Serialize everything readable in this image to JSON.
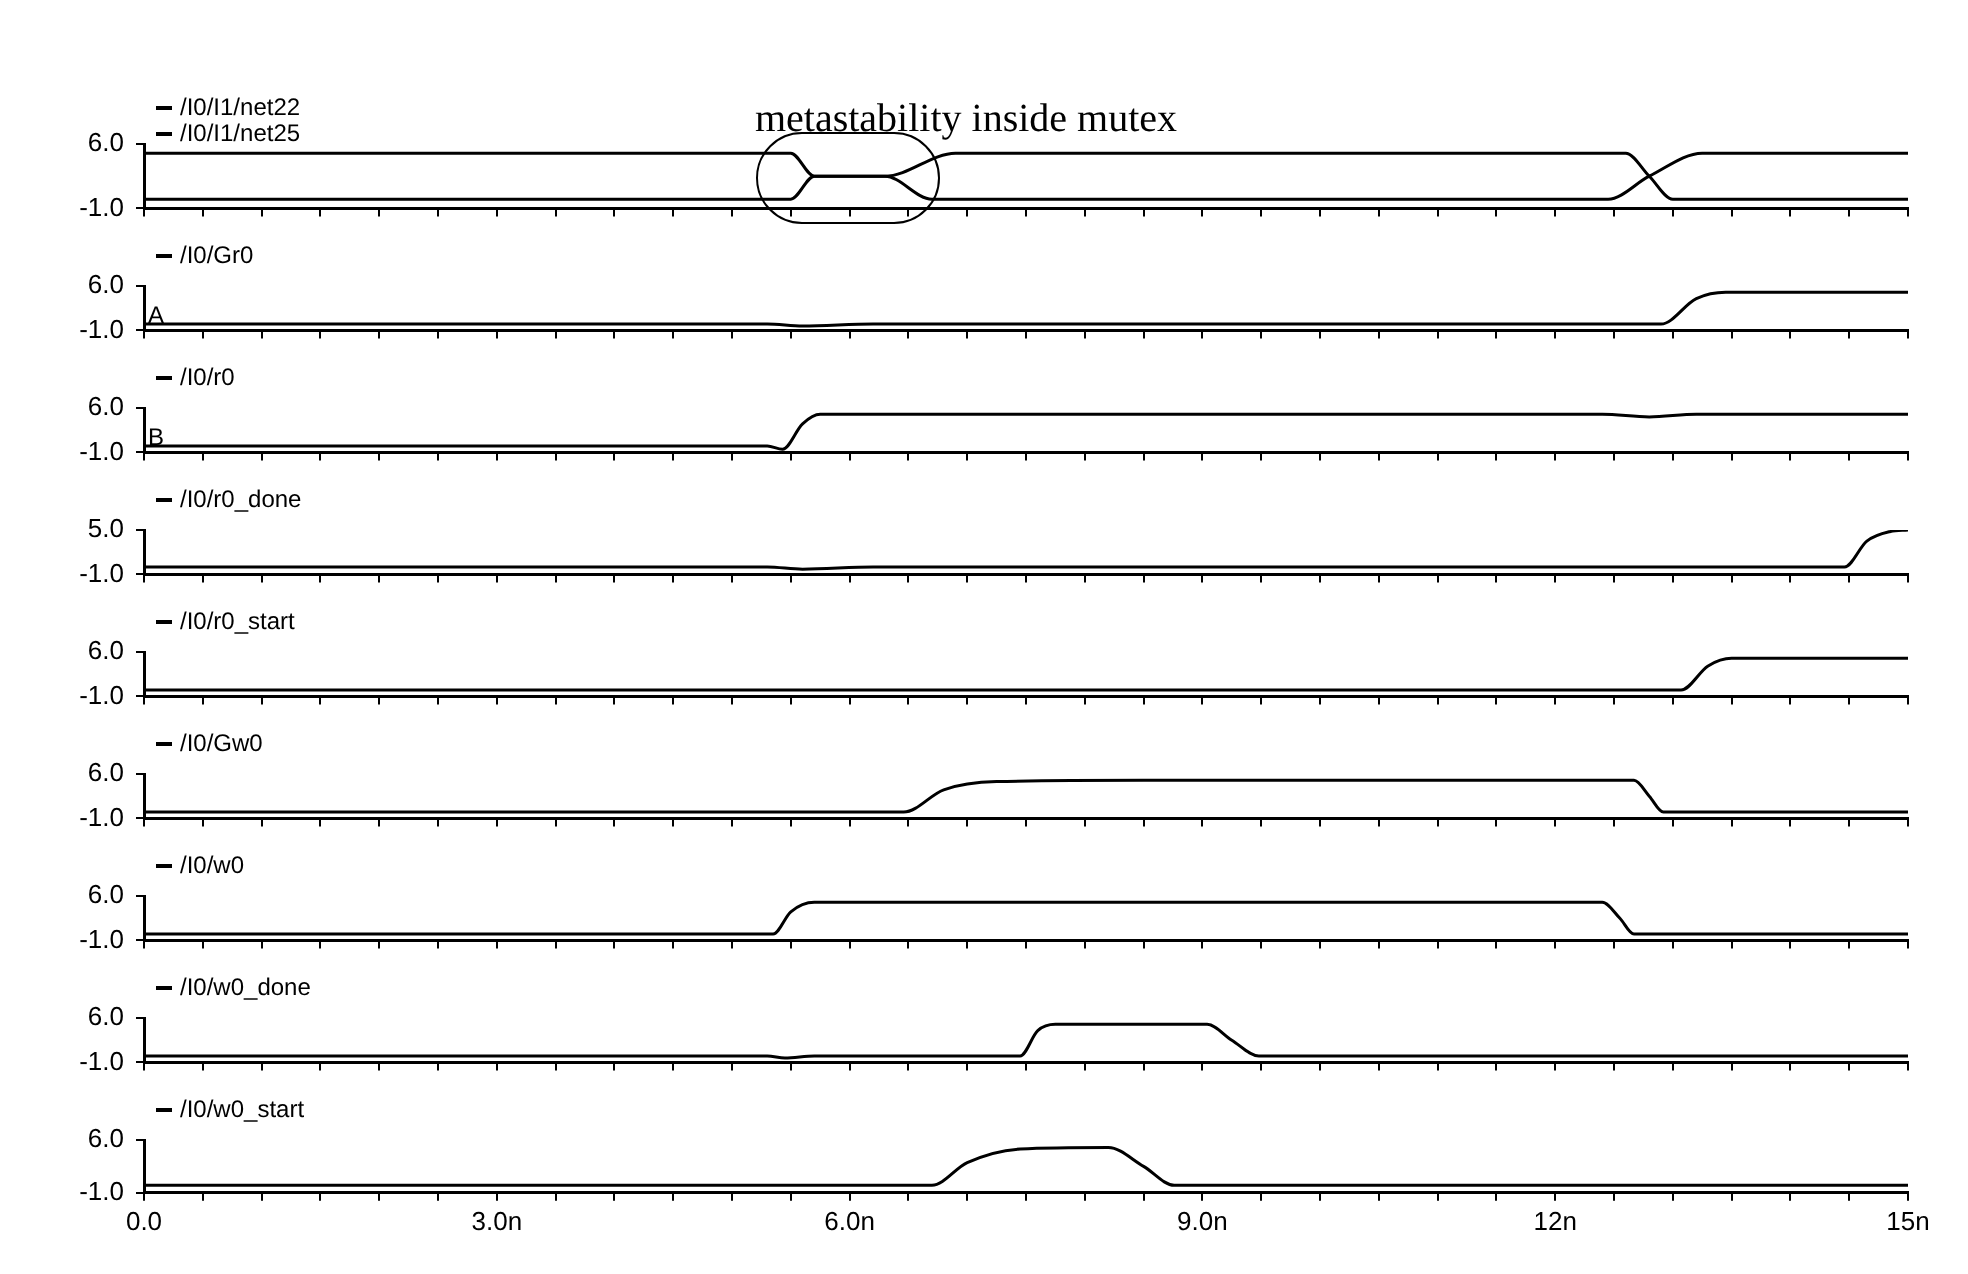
{
  "chart_data": [
    {
      "type": "line",
      "title": "metastability inside mutex",
      "legend": "top left",
      "tick_labels": "y",
      "xlim": [
        0,
        15
      ],
      "ylim": [
        -1,
        6
      ],
      "yticks": [
        {
          "value": 6,
          "label": "6.0"
        },
        {
          "value": -1,
          "label": "-1.0"
        }
      ],
      "xticks": [
        {
          "value": 0,
          "label": null
        },
        {
          "value": 0.5,
          "label": null
        },
        {
          "value": 1,
          "label": null
        },
        {
          "value": 1.5,
          "label": null
        },
        {
          "value": 2,
          "label": null
        },
        {
          "value": 2.5,
          "label": null
        },
        {
          "value": 3,
          "label": null
        },
        {
          "value": 3.5,
          "label": null
        },
        {
          "value": 4,
          "label": null
        },
        {
          "value": 4.5,
          "label": null
        },
        {
          "value": 5,
          "label": null
        },
        {
          "value": 5.5,
          "label": null
        },
        {
          "value": 6,
          "label": null
        },
        {
          "value": 6.5,
          "label": null
        },
        {
          "value": 7,
          "label": null
        },
        {
          "value": 7.5,
          "label": null
        },
        {
          "value": 8,
          "label": null
        },
        {
          "value": 8.5,
          "label": null
        },
        {
          "value": 9,
          "label": null
        },
        {
          "value": 9.5,
          "label": null
        },
        {
          "value": 10,
          "label": null
        },
        {
          "value": 10.5,
          "label": null
        },
        {
          "value": 11,
          "label": null
        },
        {
          "value": 11.5,
          "label": null
        },
        {
          "value": 12,
          "label": null
        },
        {
          "value": 12.5,
          "label": null
        },
        {
          "value": 13,
          "label": null
        },
        {
          "value": 13.5,
          "label": null
        },
        {
          "value": 14,
          "label": null
        },
        {
          "value": 14.5,
          "label": null
        },
        {
          "value": 15,
          "label": null
        }
      ],
      "series": [
        {
          "name": "/I0/I1/net22",
          "color": "#000000",
          "x": [
            0,
            5.5,
            5.7,
            6.3,
            6.7,
            12.45,
            12.8,
            13.25,
            15
          ],
          "values": [
            5,
            5,
            2.5,
            2.5,
            0,
            0,
            2.5,
            5,
            5
          ]
        },
        {
          "name": "/I0/I1/net25",
          "color": "#000000",
          "x": [
            0,
            5.5,
            5.7,
            6.3,
            6.9,
            12.6,
            12.8,
            13.0,
            15
          ],
          "values": [
            0,
            0,
            2.5,
            2.5,
            5,
            5,
            2.5,
            0,
            0
          ]
        }
      ]
    },
    {
      "type": "line",
      "legend": "top left",
      "tick_labels": "y",
      "annotations": [
        "A"
      ],
      "xlim": [
        0,
        15
      ],
      "ylim": [
        -1,
        6
      ],
      "yticks": [
        {
          "value": 6,
          "label": "6.0"
        },
        {
          "value": -1,
          "label": "-1.0"
        }
      ],
      "xticks": [
        {
          "value": 0,
          "label": null
        },
        {
          "value": 0.5,
          "label": null
        },
        {
          "value": 1,
          "label": null
        },
        {
          "value": 1.5,
          "label": null
        },
        {
          "value": 2,
          "label": null
        },
        {
          "value": 2.5,
          "label": null
        },
        {
          "value": 3,
          "label": null
        },
        {
          "value": 3.5,
          "label": null
        },
        {
          "value": 4,
          "label": null
        },
        {
          "value": 4.5,
          "label": null
        },
        {
          "value": 5,
          "label": null
        },
        {
          "value": 5.5,
          "label": null
        },
        {
          "value": 6,
          "label": null
        },
        {
          "value": 6.5,
          "label": null
        },
        {
          "value": 7,
          "label": null
        },
        {
          "value": 7.5,
          "label": null
        },
        {
          "value": 8,
          "label": null
        },
        {
          "value": 8.5,
          "label": null
        },
        {
          "value": 9,
          "label": null
        },
        {
          "value": 9.5,
          "label": null
        },
        {
          "value": 10,
          "label": null
        },
        {
          "value": 10.5,
          "label": null
        },
        {
          "value": 11,
          "label": null
        },
        {
          "value": 11.5,
          "label": null
        },
        {
          "value": 12,
          "label": null
        },
        {
          "value": 12.5,
          "label": null
        },
        {
          "value": 13,
          "label": null
        },
        {
          "value": 13.5,
          "label": null
        },
        {
          "value": 14,
          "label": null
        },
        {
          "value": 14.5,
          "label": null
        },
        {
          "value": 15,
          "label": null
        }
      ],
      "series": [
        {
          "name": "/I0/Gr0",
          "color": "#000000",
          "x": [
            0,
            5.3,
            5.6,
            6.2,
            12.9,
            13.2,
            13.45,
            15
          ],
          "values": [
            0,
            0,
            -0.3,
            0,
            0,
            4,
            5,
            5
          ]
        }
      ]
    },
    {
      "type": "line",
      "legend": "top left",
      "tick_labels": "y",
      "annotations": [
        "B"
      ],
      "xlim": [
        0,
        15
      ],
      "ylim": [
        -1,
        6
      ],
      "yticks": [
        {
          "value": 6,
          "label": "6.0"
        },
        {
          "value": -1,
          "label": "-1.0"
        }
      ],
      "xticks": [
        {
          "value": 0,
          "label": null
        },
        {
          "value": 0.5,
          "label": null
        },
        {
          "value": 1,
          "label": null
        },
        {
          "value": 1.5,
          "label": null
        },
        {
          "value": 2,
          "label": null
        },
        {
          "value": 2.5,
          "label": null
        },
        {
          "value": 3,
          "label": null
        },
        {
          "value": 3.5,
          "label": null
        },
        {
          "value": 4,
          "label": null
        },
        {
          "value": 4.5,
          "label": null
        },
        {
          "value": 5,
          "label": null
        },
        {
          "value": 5.5,
          "label": null
        },
        {
          "value": 6,
          "label": null
        },
        {
          "value": 6.5,
          "label": null
        },
        {
          "value": 7,
          "label": null
        },
        {
          "value": 7.5,
          "label": null
        },
        {
          "value": 8,
          "label": null
        },
        {
          "value": 8.5,
          "label": null
        },
        {
          "value": 9,
          "label": null
        },
        {
          "value": 9.5,
          "label": null
        },
        {
          "value": 10,
          "label": null
        },
        {
          "value": 10.5,
          "label": null
        },
        {
          "value": 11,
          "label": null
        },
        {
          "value": 11.5,
          "label": null
        },
        {
          "value": 12,
          "label": null
        },
        {
          "value": 12.5,
          "label": null
        },
        {
          "value": 13,
          "label": null
        },
        {
          "value": 13.5,
          "label": null
        },
        {
          "value": 14,
          "label": null
        },
        {
          "value": 14.5,
          "label": null
        },
        {
          "value": 15,
          "label": null
        }
      ],
      "series": [
        {
          "name": "/I0/r0",
          "color": "#000000",
          "x": [
            0,
            5.3,
            5.43,
            5.6,
            5.75,
            12.4,
            12.8,
            13.2,
            15
          ],
          "values": [
            0,
            0,
            -0.5,
            3.5,
            5,
            5,
            4.6,
            5,
            5
          ]
        }
      ]
    },
    {
      "type": "line",
      "legend": "top left",
      "tick_labels": "y",
      "xlim": [
        0,
        15
      ],
      "ylim": [
        -1,
        5
      ],
      "yticks": [
        {
          "value": 5,
          "label": "5.0"
        },
        {
          "value": -1,
          "label": "-1.0"
        }
      ],
      "xticks": [
        {
          "value": 0,
          "label": null
        },
        {
          "value": 0.5,
          "label": null
        },
        {
          "value": 1,
          "label": null
        },
        {
          "value": 1.5,
          "label": null
        },
        {
          "value": 2,
          "label": null
        },
        {
          "value": 2.5,
          "label": null
        },
        {
          "value": 3,
          "label": null
        },
        {
          "value": 3.5,
          "label": null
        },
        {
          "value": 4,
          "label": null
        },
        {
          "value": 4.5,
          "label": null
        },
        {
          "value": 5,
          "label": null
        },
        {
          "value": 5.5,
          "label": null
        },
        {
          "value": 6,
          "label": null
        },
        {
          "value": 6.5,
          "label": null
        },
        {
          "value": 7,
          "label": null
        },
        {
          "value": 7.5,
          "label": null
        },
        {
          "value": 8,
          "label": null
        },
        {
          "value": 8.5,
          "label": null
        },
        {
          "value": 9,
          "label": null
        },
        {
          "value": 9.5,
          "label": null
        },
        {
          "value": 10,
          "label": null
        },
        {
          "value": 10.5,
          "label": null
        },
        {
          "value": 11,
          "label": null
        },
        {
          "value": 11.5,
          "label": null
        },
        {
          "value": 12,
          "label": null
        },
        {
          "value": 12.5,
          "label": null
        },
        {
          "value": 13,
          "label": null
        },
        {
          "value": 13.5,
          "label": null
        },
        {
          "value": 14,
          "label": null
        },
        {
          "value": 14.5,
          "label": null
        },
        {
          "value": 15,
          "label": null
        }
      ],
      "series": [
        {
          "name": "/I0/r0_done",
          "color": "#000000",
          "x": [
            0,
            5.3,
            5.6,
            6.2,
            14.46,
            14.65,
            14.85,
            15
          ],
          "values": [
            0,
            0,
            -0.3,
            0,
            0,
            3.5,
            4.8,
            5
          ]
        }
      ]
    },
    {
      "type": "line",
      "legend": "top left",
      "tick_labels": "y",
      "xlim": [
        0,
        15
      ],
      "ylim": [
        -1,
        6
      ],
      "yticks": [
        {
          "value": 6,
          "label": "6.0"
        },
        {
          "value": -1,
          "label": "-1.0"
        }
      ],
      "xticks": [
        {
          "value": 0,
          "label": null
        },
        {
          "value": 0.5,
          "label": null
        },
        {
          "value": 1,
          "label": null
        },
        {
          "value": 1.5,
          "label": null
        },
        {
          "value": 2,
          "label": null
        },
        {
          "value": 2.5,
          "label": null
        },
        {
          "value": 3,
          "label": null
        },
        {
          "value": 3.5,
          "label": null
        },
        {
          "value": 4,
          "label": null
        },
        {
          "value": 4.5,
          "label": null
        },
        {
          "value": 5,
          "label": null
        },
        {
          "value": 5.5,
          "label": null
        },
        {
          "value": 6,
          "label": null
        },
        {
          "value": 6.5,
          "label": null
        },
        {
          "value": 7,
          "label": null
        },
        {
          "value": 7.5,
          "label": null
        },
        {
          "value": 8,
          "label": null
        },
        {
          "value": 8.5,
          "label": null
        },
        {
          "value": 9,
          "label": null
        },
        {
          "value": 9.5,
          "label": null
        },
        {
          "value": 10,
          "label": null
        },
        {
          "value": 10.5,
          "label": null
        },
        {
          "value": 11,
          "label": null
        },
        {
          "value": 11.5,
          "label": null
        },
        {
          "value": 12,
          "label": null
        },
        {
          "value": 12.5,
          "label": null
        },
        {
          "value": 13,
          "label": null
        },
        {
          "value": 13.5,
          "label": null
        },
        {
          "value": 14,
          "label": null
        },
        {
          "value": 14.5,
          "label": null
        },
        {
          "value": 15,
          "label": null
        }
      ],
      "series": [
        {
          "name": "/I0/r0_start",
          "color": "#000000",
          "x": [
            0,
            13.07,
            13.3,
            13.5,
            15
          ],
          "values": [
            0,
            0,
            3.8,
            5,
            5
          ]
        }
      ]
    },
    {
      "type": "line",
      "legend": "top left",
      "tick_labels": "y",
      "xlim": [
        0,
        15
      ],
      "ylim": [
        -1,
        6
      ],
      "yticks": [
        {
          "value": 6,
          "label": "6.0"
        },
        {
          "value": -1,
          "label": "-1.0"
        }
      ],
      "xticks": [
        {
          "value": 0,
          "label": null
        },
        {
          "value": 0.5,
          "label": null
        },
        {
          "value": 1,
          "label": null
        },
        {
          "value": 1.5,
          "label": null
        },
        {
          "value": 2,
          "label": null
        },
        {
          "value": 2.5,
          "label": null
        },
        {
          "value": 3,
          "label": null
        },
        {
          "value": 3.5,
          "label": null
        },
        {
          "value": 4,
          "label": null
        },
        {
          "value": 4.5,
          "label": null
        },
        {
          "value": 5,
          "label": null
        },
        {
          "value": 5.5,
          "label": null
        },
        {
          "value": 6,
          "label": null
        },
        {
          "value": 6.5,
          "label": null
        },
        {
          "value": 7,
          "label": null
        },
        {
          "value": 7.5,
          "label": null
        },
        {
          "value": 8,
          "label": null
        },
        {
          "value": 8.5,
          "label": null
        },
        {
          "value": 9,
          "label": null
        },
        {
          "value": 9.5,
          "label": null
        },
        {
          "value": 10,
          "label": null
        },
        {
          "value": 10.5,
          "label": null
        },
        {
          "value": 11,
          "label": null
        },
        {
          "value": 11.5,
          "label": null
        },
        {
          "value": 12,
          "label": null
        },
        {
          "value": 12.5,
          "label": null
        },
        {
          "value": 13,
          "label": null
        },
        {
          "value": 13.5,
          "label": null
        },
        {
          "value": 14,
          "label": null
        },
        {
          "value": 14.5,
          "label": null
        },
        {
          "value": 15,
          "label": null
        }
      ],
      "series": [
        {
          "name": "/I0/Gw0",
          "color": "#000000",
          "x": [
            0,
            6.46,
            6.8,
            7.25,
            8.5,
            12.67,
            12.8,
            12.92,
            15
          ],
          "values": [
            0,
            0,
            3.5,
            4.8,
            5,
            5,
            2.5,
            0,
            0
          ]
        }
      ]
    },
    {
      "type": "line",
      "legend": "top left",
      "tick_labels": "y",
      "xlim": [
        0,
        15
      ],
      "ylim": [
        -1,
        6
      ],
      "yticks": [
        {
          "value": 6,
          "label": "6.0"
        },
        {
          "value": -1,
          "label": "-1.0"
        }
      ],
      "xticks": [
        {
          "value": 0,
          "label": null
        },
        {
          "value": 0.5,
          "label": null
        },
        {
          "value": 1,
          "label": null
        },
        {
          "value": 1.5,
          "label": null
        },
        {
          "value": 2,
          "label": null
        },
        {
          "value": 2.5,
          "label": null
        },
        {
          "value": 3,
          "label": null
        },
        {
          "value": 3.5,
          "label": null
        },
        {
          "value": 4,
          "label": null
        },
        {
          "value": 4.5,
          "label": null
        },
        {
          "value": 5,
          "label": null
        },
        {
          "value": 5.5,
          "label": null
        },
        {
          "value": 6,
          "label": null
        },
        {
          "value": 6.5,
          "label": null
        },
        {
          "value": 7,
          "label": null
        },
        {
          "value": 7.5,
          "label": null
        },
        {
          "value": 8,
          "label": null
        },
        {
          "value": 8.5,
          "label": null
        },
        {
          "value": 9,
          "label": null
        },
        {
          "value": 9.5,
          "label": null
        },
        {
          "value": 10,
          "label": null
        },
        {
          "value": 10.5,
          "label": null
        },
        {
          "value": 11,
          "label": null
        },
        {
          "value": 11.5,
          "label": null
        },
        {
          "value": 12,
          "label": null
        },
        {
          "value": 12.5,
          "label": null
        },
        {
          "value": 13,
          "label": null
        },
        {
          "value": 13.5,
          "label": null
        },
        {
          "value": 14,
          "label": null
        },
        {
          "value": 14.5,
          "label": null
        },
        {
          "value": 15,
          "label": null
        }
      ],
      "series": [
        {
          "name": "/I0/w0",
          "color": "#000000",
          "x": [
            0,
            5.35,
            5.5,
            5.7,
            12.4,
            12.55,
            12.67,
            15
          ],
          "values": [
            0,
            0,
            3.5,
            5,
            5,
            2.5,
            0,
            0
          ]
        }
      ]
    },
    {
      "type": "line",
      "legend": "top left",
      "tick_labels": "y",
      "xlim": [
        0,
        15
      ],
      "ylim": [
        -1,
        6
      ],
      "yticks": [
        {
          "value": 6,
          "label": "6.0"
        },
        {
          "value": -1,
          "label": "-1.0"
        }
      ],
      "xticks": [
        {
          "value": 0,
          "label": null
        },
        {
          "value": 0.5,
          "label": null
        },
        {
          "value": 1,
          "label": null
        },
        {
          "value": 1.5,
          "label": null
        },
        {
          "value": 2,
          "label": null
        },
        {
          "value": 2.5,
          "label": null
        },
        {
          "value": 3,
          "label": null
        },
        {
          "value": 3.5,
          "label": null
        },
        {
          "value": 4,
          "label": null
        },
        {
          "value": 4.5,
          "label": null
        },
        {
          "value": 5,
          "label": null
        },
        {
          "value": 5.5,
          "label": null
        },
        {
          "value": 6,
          "label": null
        },
        {
          "value": 6.5,
          "label": null
        },
        {
          "value": 7,
          "label": null
        },
        {
          "value": 7.5,
          "label": null
        },
        {
          "value": 8,
          "label": null
        },
        {
          "value": 8.5,
          "label": null
        },
        {
          "value": 9,
          "label": null
        },
        {
          "value": 9.5,
          "label": null
        },
        {
          "value": 10,
          "label": null
        },
        {
          "value": 10.5,
          "label": null
        },
        {
          "value": 11,
          "label": null
        },
        {
          "value": 11.5,
          "label": null
        },
        {
          "value": 12,
          "label": null
        },
        {
          "value": 12.5,
          "label": null
        },
        {
          "value": 13,
          "label": null
        },
        {
          "value": 13.5,
          "label": null
        },
        {
          "value": 14,
          "label": null
        },
        {
          "value": 14.5,
          "label": null
        },
        {
          "value": 15,
          "label": null
        }
      ],
      "series": [
        {
          "name": "/I0/w0_done",
          "color": "#000000",
          "x": [
            0,
            5.3,
            5.45,
            5.7,
            7.45,
            7.6,
            7.75,
            9.04,
            9.25,
            9.48,
            15
          ],
          "values": [
            0,
            0,
            -0.3,
            0,
            0,
            4,
            5,
            5,
            2.5,
            0,
            0
          ]
        }
      ]
    },
    {
      "type": "line",
      "legend": "top left",
      "xlim": [
        0,
        15
      ],
      "ylim": [
        -1,
        6
      ],
      "yticks": [
        {
          "value": 6,
          "label": "6.0"
        },
        {
          "value": -1,
          "label": "-1.0"
        }
      ],
      "xticks": [
        {
          "value": 0,
          "label": "0.0"
        },
        {
          "value": 0.5,
          "label": null
        },
        {
          "value": 1,
          "label": null
        },
        {
          "value": 1.5,
          "label": null
        },
        {
          "value": 2,
          "label": null
        },
        {
          "value": 2.5,
          "label": null
        },
        {
          "value": 3,
          "label": "3.0n"
        },
        {
          "value": 3.5,
          "label": null
        },
        {
          "value": 4,
          "label": null
        },
        {
          "value": 4.5,
          "label": null
        },
        {
          "value": 5,
          "label": null
        },
        {
          "value": 5.5,
          "label": null
        },
        {
          "value": 6,
          "label": "6.0n"
        },
        {
          "value": 6.5,
          "label": null
        },
        {
          "value": 7,
          "label": null
        },
        {
          "value": 7.5,
          "label": null
        },
        {
          "value": 8,
          "label": null
        },
        {
          "value": 8.5,
          "label": null
        },
        {
          "value": 9,
          "label": "9.0n"
        },
        {
          "value": 9.5,
          "label": null
        },
        {
          "value": 10,
          "label": null
        },
        {
          "value": 10.5,
          "label": null
        },
        {
          "value": 11,
          "label": null
        },
        {
          "value": 11.5,
          "label": null
        },
        {
          "value": 12,
          "label": "12n"
        },
        {
          "value": 12.5,
          "label": null
        },
        {
          "value": 13,
          "label": null
        },
        {
          "value": 13.5,
          "label": null
        },
        {
          "value": 14,
          "label": null
        },
        {
          "value": 14.5,
          "label": null
        },
        {
          "value": 15,
          "label": "15n"
        }
      ],
      "series": [
        {
          "name": "/I0/w0_start",
          "color": "#000000",
          "x": [
            0,
            6.7,
            7.0,
            7.45,
            8.2,
            8.5,
            8.76,
            15
          ],
          "values": [
            0,
            0,
            3,
            4.8,
            5,
            2.5,
            0,
            0
          ]
        }
      ]
    }
  ]
}
